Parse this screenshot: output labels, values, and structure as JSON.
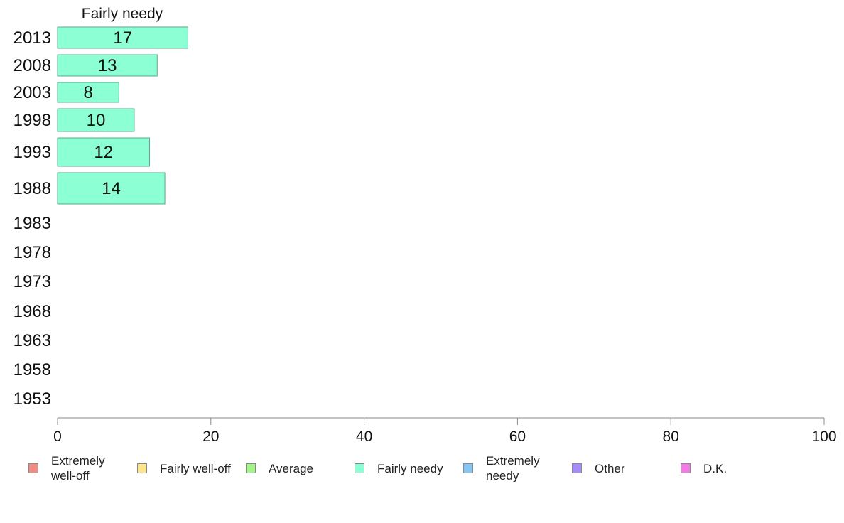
{
  "chart_data": {
    "type": "bar",
    "title": "Fairly needy",
    "categories": [
      "2013",
      "2008",
      "2003",
      "1998",
      "1993",
      "1988",
      "1983",
      "1978",
      "1973",
      "1968",
      "1963",
      "1958",
      "1953"
    ],
    "series": [
      {
        "name": "Fairly needy",
        "values": [
          17,
          13,
          8,
          10,
          12,
          14,
          null,
          null,
          null,
          null,
          null,
          null,
          null
        ],
        "color": "#8dffd4"
      }
    ],
    "xlim": [
      0,
      100
    ],
    "xticks": [
      0,
      20,
      40,
      60,
      80,
      100
    ],
    "grid": false,
    "legend": {
      "placement": "bottom",
      "entries": [
        {
          "label": "Extremely well-off",
          "color": "#f28b82"
        },
        {
          "label": "Fairly well-off",
          "color": "#fde68a"
        },
        {
          "label": "Average",
          "color": "#a3f58a"
        },
        {
          "label": "Fairly needy",
          "color": "#8dffd4"
        },
        {
          "label": "Extremely needy",
          "color": "#87c5f5"
        },
        {
          "label": "Other",
          "color": "#a78bfa"
        },
        {
          "label": "D.K.",
          "color": "#f57ae8"
        }
      ]
    }
  }
}
